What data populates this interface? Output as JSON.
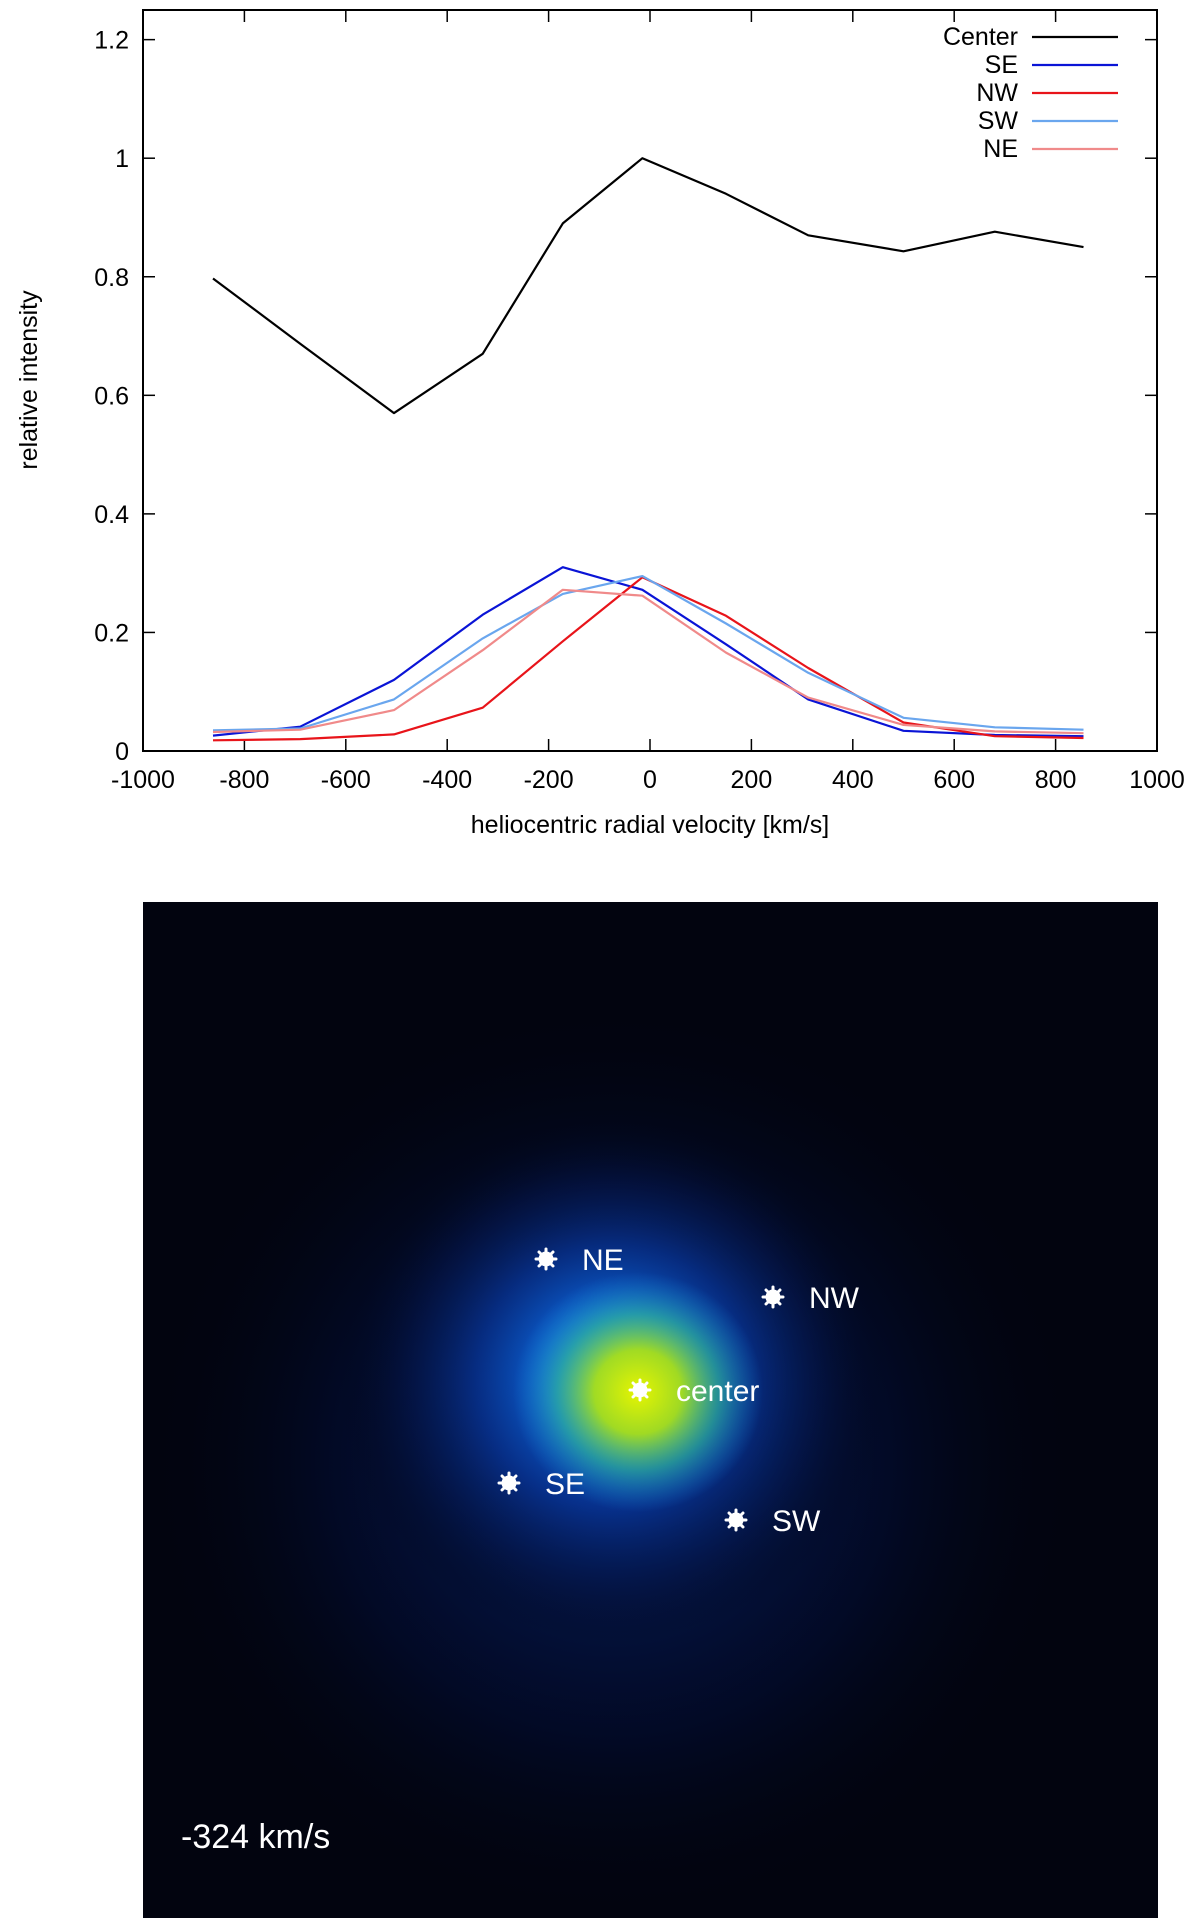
{
  "chart_data": {
    "type": "line",
    "xlabel": "heliocentric radial velocity [km/s]",
    "ylabel": "relative intensity",
    "xlim": [
      -1000,
      1000
    ],
    "ylim": [
      0,
      1.25
    ],
    "xticks": [
      -1000,
      -800,
      -600,
      -400,
      -200,
      0,
      200,
      400,
      600,
      800,
      1000
    ],
    "yticks": [
      0,
      0.2,
      0.4,
      0.6,
      0.8,
      1,
      1.2
    ],
    "grid": false,
    "legend_position": "top-right",
    "series": [
      {
        "name": "Center",
        "color": "#000000",
        "x": [
          -862,
          -690,
          -505,
          -330,
          -172,
          -15,
          150,
          312,
          500,
          680,
          855
        ],
        "y": [
          0.797,
          0.687,
          0.57,
          0.67,
          0.89,
          1.0,
          0.94,
          0.87,
          0.843,
          0.876,
          0.85
        ]
      },
      {
        "name": "SE",
        "color": "#0a14d6",
        "x": [
          -862,
          -690,
          -505,
          -330,
          -172,
          -15,
          150,
          312,
          500,
          680,
          855
        ],
        "y": [
          0.026,
          0.041,
          0.12,
          0.23,
          0.31,
          0.272,
          0.18,
          0.087,
          0.034,
          0.027,
          0.025
        ]
      },
      {
        "name": "NW",
        "color": "#e8141a",
        "x": [
          -862,
          -690,
          -505,
          -330,
          -172,
          -15,
          150,
          312,
          500,
          680,
          855
        ],
        "y": [
          0.018,
          0.02,
          0.028,
          0.073,
          0.185,
          0.293,
          0.228,
          0.14,
          0.048,
          0.025,
          0.022
        ]
      },
      {
        "name": "SW",
        "color": "#6aa6ee",
        "x": [
          -862,
          -690,
          -505,
          -330,
          -172,
          -15,
          150,
          312,
          500,
          680,
          855
        ],
        "y": [
          0.035,
          0.038,
          0.087,
          0.19,
          0.265,
          0.295,
          0.215,
          0.132,
          0.056,
          0.04,
          0.036
        ]
      },
      {
        "name": "NE",
        "color": "#f08a8a",
        "x": [
          -862,
          -690,
          -505,
          -330,
          -172,
          -15,
          150,
          312,
          500,
          680,
          855
        ],
        "y": [
          0.032,
          0.036,
          0.069,
          0.17,
          0.272,
          0.262,
          0.166,
          0.09,
          0.044,
          0.033,
          0.03
        ]
      }
    ]
  },
  "map_panel": {
    "velocity_label": "-324 km/s",
    "markers": [
      {
        "label": "NE"
      },
      {
        "label": "NW"
      },
      {
        "label": "center"
      },
      {
        "label": "SE"
      },
      {
        "label": "SW"
      }
    ],
    "colors": {
      "background": "#02040f",
      "core": "#d8f000",
      "halo": "#0a6ae0"
    }
  }
}
